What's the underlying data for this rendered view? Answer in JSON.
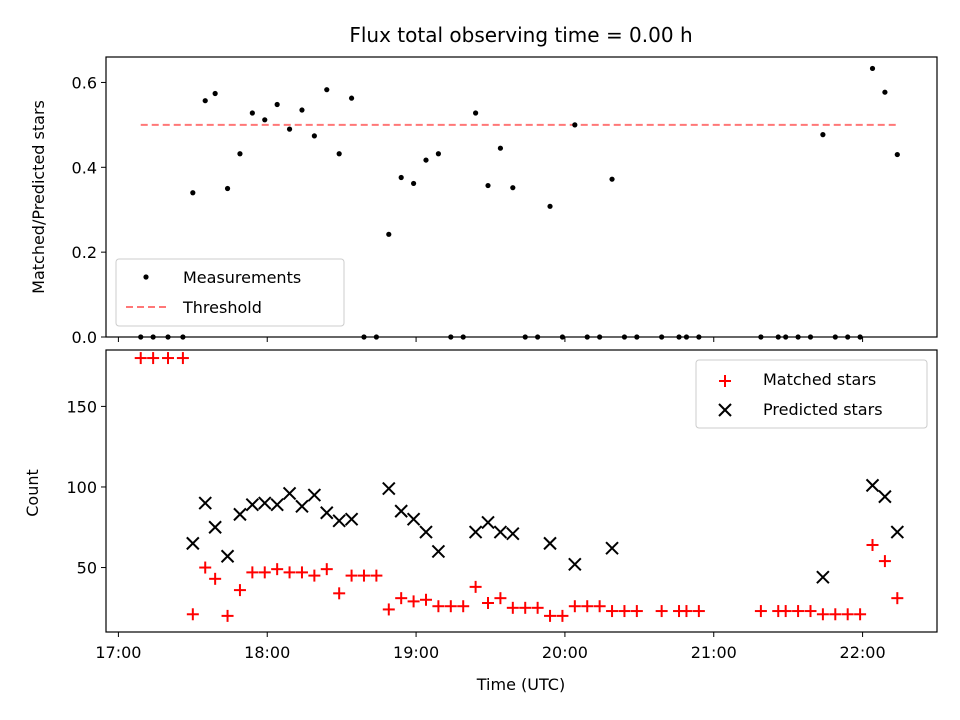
{
  "chart_data": [
    {
      "type": "scatter",
      "title": "Flux total observing time = 0.00 h",
      "xlabel": "",
      "ylabel": "Matched/Predicted stars",
      "xlim": [
        "16:55",
        "22:30"
      ],
      "ylim": [
        0,
        0.66
      ],
      "y_ticks": [
        0.0,
        0.2,
        0.4,
        0.6
      ],
      "y_tick_labels": [
        "0.0",
        "0.2",
        "0.4",
        "0.6"
      ],
      "legend": {
        "placement": "lower-left",
        "entries": [
          "Measurements",
          "Threshold"
        ]
      },
      "series": [
        {
          "name": "Measurements",
          "marker": "dot",
          "color": "#000000",
          "points": [
            [
              "17:09",
              0.0
            ],
            [
              "17:14",
              0.0
            ],
            [
              "17:20",
              0.0
            ],
            [
              "17:26",
              0.0
            ],
            [
              "17:30",
              0.34
            ],
            [
              "17:35",
              0.557
            ],
            [
              "17:39",
              0.574
            ],
            [
              "17:44",
              0.35
            ],
            [
              "17:49",
              0.432
            ],
            [
              "17:54",
              0.528
            ],
            [
              "17:59",
              0.512
            ],
            [
              "18:04",
              0.548
            ],
            [
              "18:09",
              0.49
            ],
            [
              "18:14",
              0.535
            ],
            [
              "18:19",
              0.474
            ],
            [
              "18:24",
              0.583
            ],
            [
              "18:29",
              0.432
            ],
            [
              "18:34",
              0.563
            ],
            [
              "18:39",
              0.0
            ],
            [
              "18:44",
              0.0
            ],
            [
              "18:49",
              0.242
            ],
            [
              "18:54",
              0.376
            ],
            [
              "18:59",
              0.362
            ],
            [
              "19:04",
              0.417
            ],
            [
              "19:09",
              0.432
            ],
            [
              "19:14",
              0.0
            ],
            [
              "19:19",
              0.0
            ],
            [
              "19:24",
              0.528
            ],
            [
              "19:29",
              0.357
            ],
            [
              "19:34",
              0.445
            ],
            [
              "19:39",
              0.352
            ],
            [
              "19:44",
              0.0
            ],
            [
              "19:49",
              0.0
            ],
            [
              "19:54",
              0.308
            ],
            [
              "19:59",
              0.0
            ],
            [
              "20:04",
              0.5
            ],
            [
              "20:09",
              0.0
            ],
            [
              "20:14",
              0.0
            ],
            [
              "20:19",
              0.372
            ],
            [
              "20:24",
              0.0
            ],
            [
              "20:29",
              0.0
            ],
            [
              "20:39",
              0.0
            ],
            [
              "20:46",
              0.0
            ],
            [
              "20:49",
              0.0
            ],
            [
              "20:54",
              0.0
            ],
            [
              "21:19",
              0.0
            ],
            [
              "21:26",
              0.0
            ],
            [
              "21:29",
              0.0
            ],
            [
              "21:34",
              0.0
            ],
            [
              "21:39",
              0.0
            ],
            [
              "21:44",
              0.477
            ],
            [
              "21:49",
              0.0
            ],
            [
              "21:54",
              0.0
            ],
            [
              "21:59",
              0.0
            ],
            [
              "22:04",
              0.633
            ],
            [
              "22:09",
              0.577
            ],
            [
              "22:14",
              0.43
            ]
          ]
        },
        {
          "name": "Threshold",
          "style": "dashed",
          "color": "#ff7777",
          "points": [
            [
              "17:09",
              0.5
            ],
            [
              "22:14",
              0.5
            ]
          ]
        }
      ]
    },
    {
      "type": "scatter",
      "title": "",
      "xlabel": "Time (UTC)",
      "ylabel": "Count",
      "xlim": [
        "16:55",
        "22:30"
      ],
      "ylim": [
        10,
        185
      ],
      "x_ticks": [
        "17:00",
        "18:00",
        "19:00",
        "20:00",
        "21:00",
        "22:00"
      ],
      "y_ticks": [
        50,
        100,
        150
      ],
      "y_tick_labels": [
        "50",
        "100",
        "150"
      ],
      "legend": {
        "placement": "top-right",
        "entries": [
          "Matched stars",
          "Predicted stars"
        ]
      },
      "series": [
        {
          "name": "Matched stars",
          "marker": "plus",
          "color": "#ff0000",
          "points": [
            [
              "17:09",
              180
            ],
            [
              "17:14",
              180
            ],
            [
              "17:20",
              180
            ],
            [
              "17:26",
              180
            ],
            [
              "17:30",
              21
            ],
            [
              "17:35",
              50
            ],
            [
              "17:39",
              43
            ],
            [
              "17:44",
              20
            ],
            [
              "17:49",
              36
            ],
            [
              "17:54",
              47
            ],
            [
              "17:59",
              47
            ],
            [
              "18:04",
              49
            ],
            [
              "18:09",
              47
            ],
            [
              "18:14",
              47
            ],
            [
              "18:19",
              45
            ],
            [
              "18:24",
              49
            ],
            [
              "18:29",
              34
            ],
            [
              "18:34",
              45
            ],
            [
              "18:39",
              45
            ],
            [
              "18:44",
              45
            ],
            [
              "18:49",
              24
            ],
            [
              "18:54",
              31
            ],
            [
              "18:59",
              29
            ],
            [
              "19:04",
              30
            ],
            [
              "19:09",
              26
            ],
            [
              "19:14",
              26
            ],
            [
              "19:19",
              26
            ],
            [
              "19:24",
              38
            ],
            [
              "19:29",
              28
            ],
            [
              "19:34",
              31
            ],
            [
              "19:39",
              25
            ],
            [
              "19:44",
              25
            ],
            [
              "19:49",
              25
            ],
            [
              "19:54",
              20
            ],
            [
              "19:59",
              20
            ],
            [
              "20:04",
              26
            ],
            [
              "20:09",
              26
            ],
            [
              "20:14",
              26
            ],
            [
              "20:19",
              23
            ],
            [
              "20:24",
              23
            ],
            [
              "20:29",
              23
            ],
            [
              "20:39",
              23
            ],
            [
              "20:46",
              23
            ],
            [
              "20:49",
              23
            ],
            [
              "20:54",
              23
            ],
            [
              "21:19",
              23
            ],
            [
              "21:26",
              23
            ],
            [
              "21:29",
              23
            ],
            [
              "21:34",
              23
            ],
            [
              "21:39",
              23
            ],
            [
              "21:44",
              21
            ],
            [
              "21:49",
              21
            ],
            [
              "21:54",
              21
            ],
            [
              "21:59",
              21
            ],
            [
              "22:04",
              64
            ],
            [
              "22:09",
              54
            ],
            [
              "22:14",
              31
            ]
          ]
        },
        {
          "name": "Predicted stars",
          "marker": "x",
          "color": "#000000",
          "points": [
            [
              "17:30",
              65
            ],
            [
              "17:35",
              90
            ],
            [
              "17:39",
              75
            ],
            [
              "17:44",
              57
            ],
            [
              "17:49",
              83
            ],
            [
              "17:54",
              89
            ],
            [
              "17:59",
              90
            ],
            [
              "18:04",
              89
            ],
            [
              "18:09",
              96
            ],
            [
              "18:14",
              88
            ],
            [
              "18:19",
              95
            ],
            [
              "18:24",
              84
            ],
            [
              "18:29",
              79
            ],
            [
              "18:34",
              80
            ],
            [
              "18:49",
              99
            ],
            [
              "18:54",
              85
            ],
            [
              "18:59",
              80
            ],
            [
              "19:04",
              72
            ],
            [
              "19:09",
              60
            ],
            [
              "19:24",
              72
            ],
            [
              "19:29",
              78
            ],
            [
              "19:34",
              72
            ],
            [
              "19:39",
              71
            ],
            [
              "19:54",
              65
            ],
            [
              "20:04",
              52
            ],
            [
              "20:19",
              62
            ],
            [
              "21:44",
              44
            ],
            [
              "22:04",
              101
            ],
            [
              "22:09",
              94
            ],
            [
              "22:14",
              72
            ]
          ]
        }
      ]
    }
  ]
}
